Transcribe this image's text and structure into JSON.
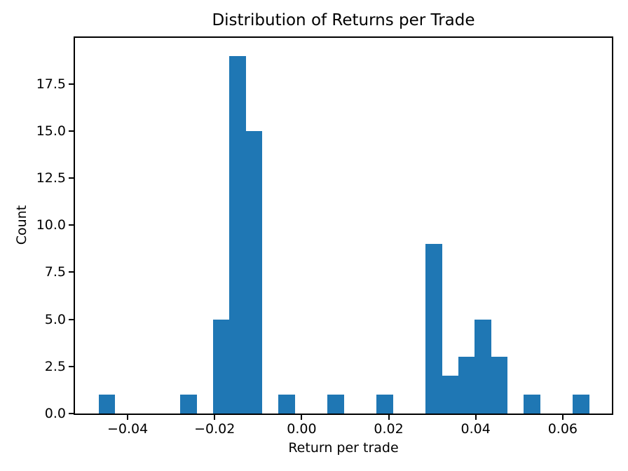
{
  "chart_data": {
    "type": "bar",
    "subtype": "histogram",
    "title": "Distribution of Returns per Trade",
    "xlabel": "Return per trade",
    "ylabel": "Count",
    "bar_color": "#1f77b4",
    "n_bins": 30,
    "bin_start": -0.0467,
    "bin_width": 0.00376,
    "counts": [
      1,
      0,
      0,
      0,
      0,
      1,
      0,
      5,
      19,
      15,
      0,
      1,
      0,
      0,
      1,
      0,
      0,
      1,
      0,
      0,
      9,
      2,
      3,
      5,
      3,
      0,
      1,
      0,
      0,
      1
    ],
    "xlim": [
      -0.0521,
      0.0713
    ],
    "ylim": [
      0,
      19.95
    ],
    "xticks": [
      {
        "value": -0.04,
        "label": "−0.04"
      },
      {
        "value": -0.02,
        "label": "−0.02"
      },
      {
        "value": 0.0,
        "label": "0.00"
      },
      {
        "value": 0.02,
        "label": "0.02"
      },
      {
        "value": 0.04,
        "label": "0.04"
      },
      {
        "value": 0.06,
        "label": "0.06"
      }
    ],
    "yticks": [
      {
        "value": 0.0,
        "label": "0.0"
      },
      {
        "value": 2.5,
        "label": "2.5"
      },
      {
        "value": 5.0,
        "label": "5.0"
      },
      {
        "value": 7.5,
        "label": "7.5"
      },
      {
        "value": 10.0,
        "label": "10.0"
      },
      {
        "value": 12.5,
        "label": "12.5"
      },
      {
        "value": 15.0,
        "label": "15.0"
      },
      {
        "value": 17.5,
        "label": "17.5"
      }
    ],
    "grid": false,
    "legend": null
  }
}
